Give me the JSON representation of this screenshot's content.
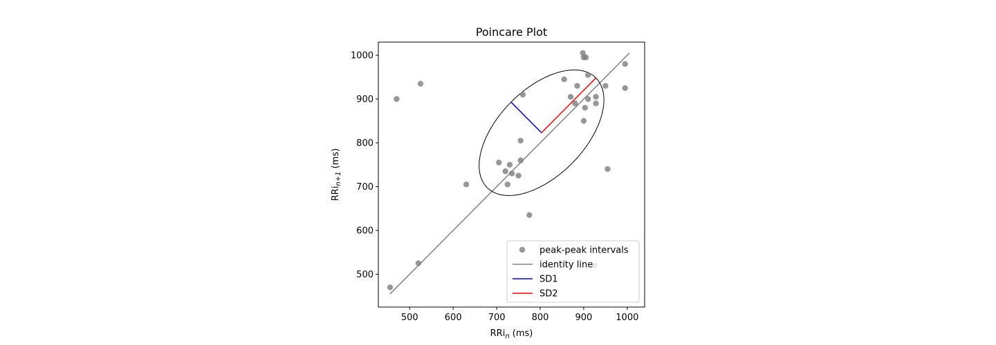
{
  "chart_data": {
    "type": "scatter",
    "title": "Poincare Plot",
    "xlabel": {
      "base": "RRi",
      "sub": "n",
      "suffix": " (ms)"
    },
    "ylabel": {
      "base": "RRi",
      "sub": "n+1",
      "suffix": " (ms)"
    },
    "xlim": [
      428,
      1040
    ],
    "ylim": [
      425,
      1030
    ],
    "xticks": [
      500,
      600,
      700,
      800,
      900,
      1000
    ],
    "yticks": [
      500,
      600,
      700,
      800,
      900,
      1000
    ],
    "grid": false,
    "legend_position": "lower-right",
    "series": [
      {
        "name": "peak-peak intervals",
        "kind": "scatter",
        "color": "#808080",
        "points": [
          [
            455,
            470
          ],
          [
            470,
            900
          ],
          [
            520,
            525
          ],
          [
            525,
            935
          ],
          [
            630,
            705
          ],
          [
            705,
            755
          ],
          [
            720,
            735
          ],
          [
            725,
            705
          ],
          [
            730,
            750
          ],
          [
            735,
            730
          ],
          [
            750,
            725
          ],
          [
            755,
            805
          ],
          [
            755,
            760
          ],
          [
            760,
            910
          ],
          [
            775,
            635
          ],
          [
            855,
            945
          ],
          [
            870,
            905
          ],
          [
            880,
            890
          ],
          [
            885,
            930
          ],
          [
            898,
            1005
          ],
          [
            900,
            995
          ],
          [
            900,
            850
          ],
          [
            903,
            880
          ],
          [
            905,
            995
          ],
          [
            910,
            900
          ],
          [
            910,
            955
          ],
          [
            925,
            520
          ],
          [
            928,
            905
          ],
          [
            928,
            890
          ],
          [
            950,
            930
          ],
          [
            955,
            740
          ],
          [
            995,
            980
          ],
          [
            995,
            925
          ]
        ]
      },
      {
        "name": "identity line",
        "kind": "line",
        "color": "#808080",
        "points": [
          [
            455,
            455
          ],
          [
            1005,
            1005
          ]
        ]
      },
      {
        "name": "SD1",
        "kind": "line",
        "color": "#0000cc",
        "points": [
          [
            803,
            823
          ],
          [
            733,
            893
          ]
        ]
      },
      {
        "name": "SD2",
        "kind": "line",
        "color": "#ff0000",
        "points": [
          [
            803,
            823
          ],
          [
            928,
            948
          ]
        ]
      }
    ],
    "ellipse": {
      "color": "#000000",
      "center": [
        803,
        823
      ],
      "sd1": 99,
      "sd2": 177,
      "angle_deg": 45
    }
  }
}
